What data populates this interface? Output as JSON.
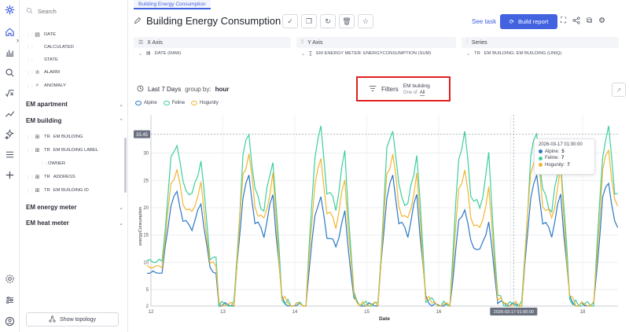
{
  "colors": {
    "accent": "#4262e0",
    "alpine": "#2a78c7",
    "feline": "#3ecf9c",
    "hogunity": "#f0b633",
    "highlight": "#e02020"
  },
  "panel": {
    "search_placeholder": "Search",
    "top_items": [
      {
        "icon": "calendar-icon",
        "label": "DATE"
      },
      {
        "icon": "calculated-icon",
        "label": "CALCULATED"
      },
      {
        "icon": "state-icon",
        "label": "STATE"
      },
      {
        "icon": "alarm-icon",
        "label": "ALARM"
      },
      {
        "icon": "anomaly-icon",
        "label": "ANOMALY"
      }
    ],
    "groups": {
      "apartment": "EM apartment",
      "building": "EM building",
      "energy_meter": "EM energy meter",
      "heat_meter": "EM heat meter"
    },
    "building_items": [
      {
        "type": "Tr",
        "label": "EM BUILDING"
      },
      {
        "type": "Tr",
        "label": "EM BUILDING LABEL"
      },
      {
        "type": "",
        "label": "OWNER"
      },
      {
        "type": "Tr",
        "label": "ADDRESS"
      },
      {
        "type": "Tr",
        "label": "EM BUILDING ID"
      }
    ],
    "topology_button": "Show topology"
  },
  "main": {
    "tab": "Building Energy Consumption",
    "title": "Building Energy Consumption",
    "see_task": "See task",
    "build_report": "Build report",
    "x_axis": {
      "header": "X Axis",
      "value": "DATE (RAW)"
    },
    "y_axis": {
      "header": "Y Axis",
      "value": "EM ENERGY METER: ENERGYCONSUMPTION (SUM)"
    },
    "series": {
      "header": "Series",
      "value": "EM BUILDING: EM BUILDING (UNIQ)"
    },
    "period": "Last 7 Days",
    "group_by_label": "group by:",
    "group_by_value": "hour",
    "filters": {
      "label": "Filters",
      "field": "EM building",
      "operator": "One of",
      "value": "All"
    }
  },
  "tooltip": {
    "date": "2026-03-17 01:00:00",
    "rows": [
      {
        "name": "Alpine:",
        "value": "5"
      },
      {
        "name": "Feline:",
        "value": "7"
      },
      {
        "name": "Hogunity:",
        "value": "7"
      }
    ]
  },
  "chart_data": {
    "type": "line",
    "ylabel": "energyConsumption",
    "xlabel": "Date",
    "x_ticks": [
      "12",
      "13",
      "14",
      "15",
      "16",
      "17",
      "18"
    ],
    "y_ticks": [
      "2",
      "5",
      "10",
      "15",
      "20",
      "25",
      "30"
    ],
    "ylim": [
      2,
      37
    ],
    "ref_line_label": "33.45",
    "crosshair_label": "2026-03-17 01:00:00",
    "legend_position": "top-left",
    "series": [
      {
        "name": "Alpine",
        "color": "#2a78c7",
        "day_peak": [
          23,
          26,
          22,
          26,
          20,
          26,
          25
        ],
        "night_base": [
          8,
          2,
          2,
          2,
          2,
          2,
          2
        ]
      },
      {
        "name": "Feline",
        "color": "#3ecf9c",
        "day_peak": [
          32,
          34,
          35,
          35,
          34,
          34,
          35
        ],
        "night_base": [
          10,
          2,
          2,
          2,
          2,
          2,
          2
        ]
      },
      {
        "name": "Hogunity",
        "color": "#f0b633",
        "day_peak": [
          27,
          30,
          29,
          30,
          27,
          31,
          31
        ],
        "night_base": [
          9,
          2,
          2,
          2,
          2,
          2,
          2
        ]
      }
    ]
  }
}
